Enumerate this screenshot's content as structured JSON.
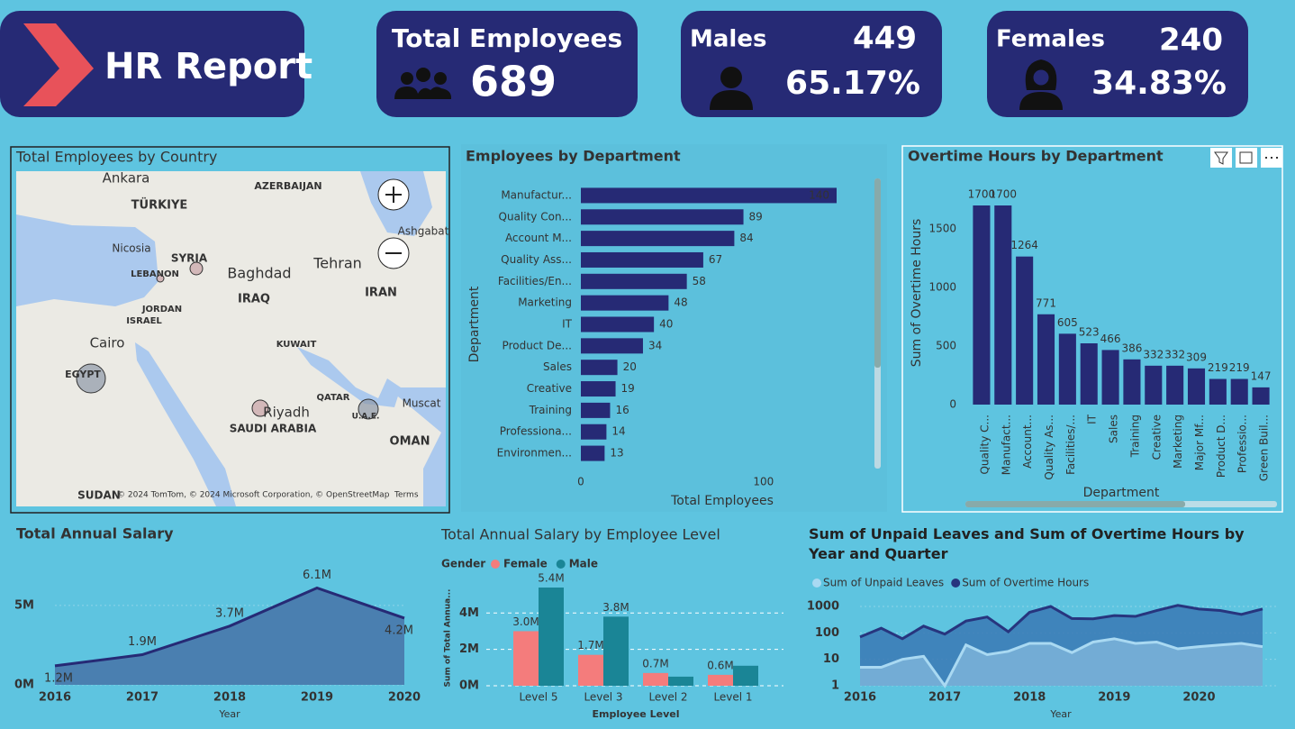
{
  "header": {
    "title": "HR Report"
  },
  "kpis": {
    "total": {
      "label": "Total Employees",
      "value": "689"
    },
    "males": {
      "label": "Males",
      "count": "449",
      "share": "65.17%"
    },
    "females": {
      "label": "Females",
      "count": "240",
      "share": "34.83%"
    }
  },
  "map": {
    "title": "Total Employees by Country",
    "labels": [
      "Ankara",
      "TÜRKIYE",
      "AZERBAIJAN",
      "Nicosia",
      "SYRIA",
      "LEBANON",
      "Baghdad",
      "Tehran",
      "IRAQ",
      "IRAN",
      "JORDAN",
      "ISRAEL",
      "Cairo",
      "KUWAIT",
      "EGYPT",
      "QATAR",
      "Riyadh",
      "SAUDI ARABIA",
      "U.A.E.",
      "Muscat",
      "OMAN",
      "SUDAN",
      "Ashgabat"
    ],
    "attribution": "© 2024 TomTom, © 2024 Microsoft Corporation, © OpenStreetMap",
    "terms": "Terms"
  },
  "chart_data": [
    {
      "type": "hbar",
      "title": "Employees by Department",
      "x_label": "Total Employees",
      "y_label": "Department",
      "color": "#262a75",
      "categories": [
        "Manufactur...",
        "Quality Con...",
        "Account M...",
        "Quality Ass...",
        "Facilities/En...",
        "Marketing",
        "IT",
        "Product De...",
        "Sales",
        "Creative",
        "Training",
        "Professiona...",
        "Environmen..."
      ],
      "values": [
        140,
        89,
        84,
        67,
        58,
        48,
        40,
        34,
        20,
        19,
        16,
        14,
        13
      ],
      "xlim": [
        0,
        140
      ],
      "xticks": [
        0,
        100
      ]
    },
    {
      "type": "bar",
      "title": "Overtime Hours by Department",
      "x_label": "Department",
      "y_label": "Sum of Overtime Hours",
      "color": "#262a75",
      "categories": [
        "Quality C...",
        "Manufact...",
        "Account...",
        "Quality As...",
        "Facilities/...",
        "IT",
        "Sales",
        "Training",
        "Creative",
        "Marketing",
        "Major Mf...",
        "Product D...",
        "Professio...",
        "Green Buil..."
      ],
      "values": [
        1700,
        1700,
        1264,
        771,
        605,
        523,
        466,
        386,
        332,
        332,
        309,
        219,
        219,
        147
      ],
      "ylim": [
        0,
        1700
      ],
      "yticks": [
        0,
        500,
        1000,
        1500
      ]
    },
    {
      "type": "area",
      "title": "Total Annual Salary",
      "x_label": "Year",
      "color": "#262a75",
      "fill": "#4a7fb0",
      "categories": [
        "2016",
        "2017",
        "2018",
        "2019",
        "2020"
      ],
      "values": [
        1200000,
        1900000,
        3700000,
        6100000,
        4200000
      ],
      "value_labels": [
        "1.2M",
        "1.9M",
        "3.7M",
        "6.1M",
        "4.2M"
      ],
      "ylim": [
        0,
        8000000
      ],
      "yticks": [
        {
          "value": 0,
          "label": "0M"
        },
        {
          "value": 5000000,
          "label": "5M"
        }
      ],
      "grid": true
    },
    {
      "type": "grouped",
      "title": "Total Annual Salary by Employee Level",
      "x_label": "Employee Level",
      "y_label": "Sum of Total Annua...",
      "legend_title": "Gender",
      "categories": [
        "Level 5",
        "Level 3",
        "Level 2",
        "Level 1"
      ],
      "series": [
        {
          "name": "Female",
          "color": "#f47c7c",
          "values": [
            3000000,
            1700000,
            700000,
            600000
          ],
          "value_labels": [
            "3.0M",
            "1.7M",
            "0.7M",
            "0.6M"
          ]
        },
        {
          "name": "Male",
          "color": "#1a8596",
          "values": [
            5400000,
            3800000,
            500000,
            1100000
          ],
          "value_labels": [
            "5.4M",
            "3.8M",
            null,
            null
          ]
        }
      ],
      "ylim": [
        0,
        5500000
      ],
      "yticks": [
        {
          "value": 0,
          "label": "0M"
        },
        {
          "value": 2000000,
          "label": "2M"
        },
        {
          "value": 4000000,
          "label": "4M"
        }
      ],
      "grid": true
    },
    {
      "type": "logline",
      "title": "Sum of Unpaid Leaves and Sum of Overtime Hours by Year and Quarter",
      "x_label": "Year",
      "log_scale": true,
      "categories": [
        "2016",
        null,
        null,
        null,
        "2017",
        null,
        null,
        null,
        "2018",
        null,
        null,
        null,
        "2019",
        null,
        null,
        null,
        "2020",
        null,
        null,
        null
      ],
      "series": [
        {
          "name": "Sum of Unpaid Leaves",
          "color": "#a9d9f2",
          "values": [
            5,
            5,
            10,
            13,
            1,
            35,
            15,
            20,
            40,
            40,
            18,
            45,
            60,
            40,
            45,
            25,
            30,
            35,
            40,
            30
          ]
        },
        {
          "name": "Sum of Overtime Hours",
          "color": "#27357e",
          "values": [
            70,
            150,
            60,
            180,
            90,
            280,
            400,
            110,
            600,
            1000,
            350,
            340,
            450,
            420,
            700,
            1100,
            800,
            700,
            500,
            800
          ]
        }
      ],
      "ylim": [
        1,
        3000
      ],
      "yticks": [
        1,
        10,
        100,
        1000
      ],
      "grid": true
    }
  ]
}
